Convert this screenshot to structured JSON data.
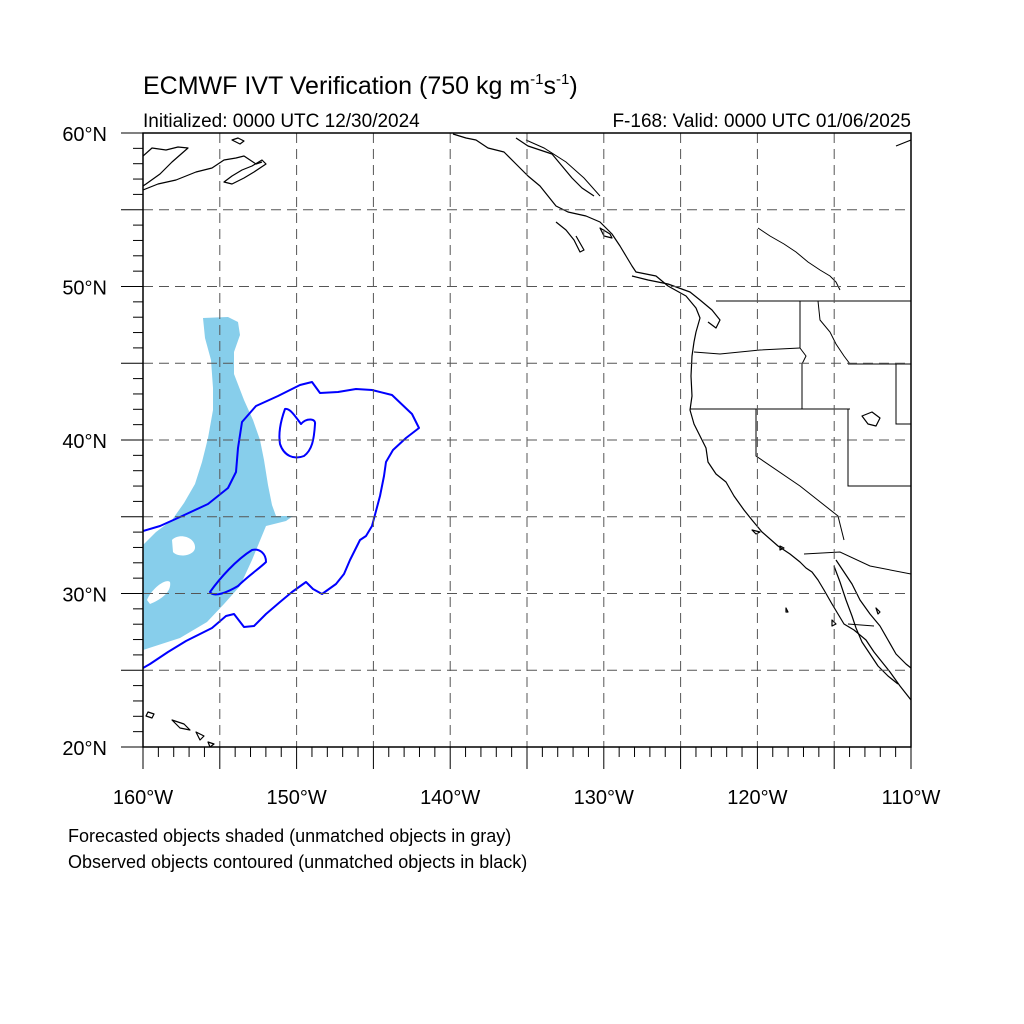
{
  "title": {
    "main": "ECMWF IVT Verification (750 kg m",
    "exp1": "-1",
    "mid": "s",
    "exp2": "-1",
    "end": ")"
  },
  "subtitle": {
    "initialized": "Initialized: 0000 UTC 12/30/2024",
    "valid": "F-168: Valid: 0000 UTC 01/06/2025"
  },
  "map": {
    "lon_range": [
      -160,
      -110
    ],
    "lat_range": [
      20,
      60
    ],
    "projection": "cylindrical-equidistant",
    "grid_spacing_deg": 5,
    "lat_labels": [
      "60°N",
      "50°N",
      "40°N",
      "30°N",
      "20°N"
    ],
    "lon_labels": [
      "160°W",
      "150°W",
      "140°W",
      "130°W",
      "120°W",
      "110°W"
    ],
    "colors": {
      "forecast_fill": "#87CEEB",
      "observed_contour": "#0000FF",
      "coastline": "#000000",
      "grid": "#555555"
    }
  },
  "legend": {
    "forecast": "Forecasted objects shaded (unmatched objects in gray)",
    "observed": "Observed objects contoured (unmatched objects in black)"
  }
}
